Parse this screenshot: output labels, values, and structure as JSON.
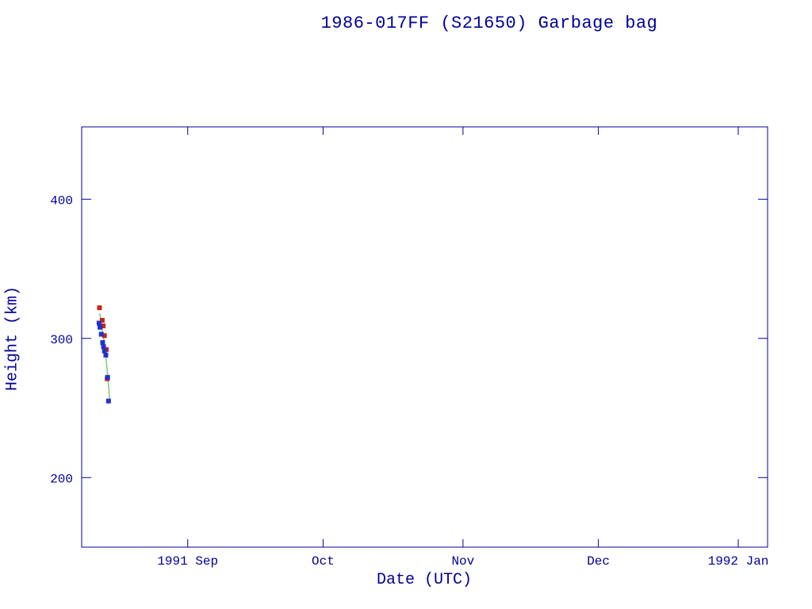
{
  "chart_data": {
    "type": "scatter",
    "title": "1986-017FF (S21650) Garbage bag",
    "xlabel": "Date (UTC)",
    "ylabel": "Height (km)",
    "x_unit": "days since 1991-08-01",
    "xlim": [
      7.5,
      159.5
    ],
    "ylim": [
      150,
      452
    ],
    "grid": false,
    "legend": "none",
    "x_ticks": [
      {
        "value": 31,
        "label": "1991 Sep"
      },
      {
        "value": 61,
        "label": "Oct"
      },
      {
        "value": 92,
        "label": "Nov"
      },
      {
        "value": 122,
        "label": "Dec"
      },
      {
        "value": 153,
        "label": "1992 Jan"
      }
    ],
    "y_ticks": [
      {
        "value": 200,
        "label": "200"
      },
      {
        "value": 300,
        "label": "300"
      },
      {
        "value": 400,
        "label": "400"
      }
    ],
    "series": [
      {
        "name": "height-observations-red",
        "marker": "square",
        "color": "#cc2211",
        "points": [
          [
            11.45,
            322
          ],
          [
            12.05,
            313
          ],
          [
            12.25,
            309
          ],
          [
            12.55,
            302
          ],
          [
            12.95,
            292
          ],
          [
            13.15,
            271
          ]
        ]
      },
      {
        "name": "height-observations-blue",
        "marker": "square",
        "color": "#2233cc",
        "points": [
          [
            11.35,
            311
          ],
          [
            11.55,
            308
          ],
          [
            11.85,
            303
          ],
          [
            12.15,
            297
          ],
          [
            12.35,
            294
          ],
          [
            12.55,
            291
          ],
          [
            12.85,
            288
          ],
          [
            13.25,
            272
          ],
          [
            13.45,
            255
          ]
        ]
      }
    ],
    "fit_line": {
      "name": "decay-fit-line",
      "color": "#7cc87c",
      "points": [
        [
          11.5,
          318
        ],
        [
          12.1,
          306
        ],
        [
          12.7,
          292
        ],
        [
          13.3,
          272
        ],
        [
          13.7,
          256
        ]
      ]
    },
    "colors": {
      "axis": "#000099",
      "text": "#000099",
      "background": "#ffffff"
    }
  }
}
